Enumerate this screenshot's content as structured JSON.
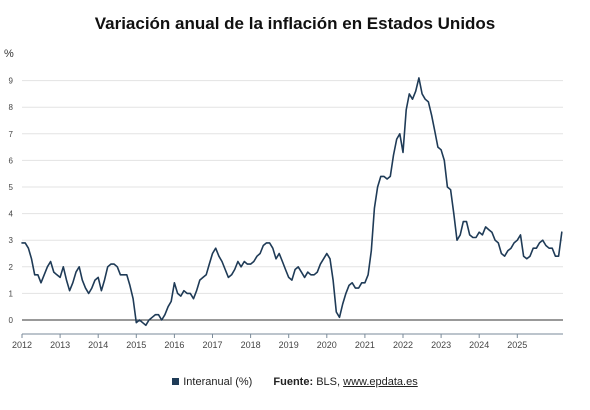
{
  "chart_data": {
    "type": "line",
    "title": "Variación anual de la inflación en Estados Unidos",
    "ylabel": "%",
    "xlabel": "",
    "ylim": [
      -0.3,
      9.5
    ],
    "yticks": [
      0,
      1,
      2,
      3,
      4,
      5,
      6,
      7,
      8,
      9
    ],
    "x_tick_labels": [
      "2012",
      "2013",
      "2014",
      "2015",
      "2016",
      "2017",
      "2018",
      "2019",
      "2020",
      "2021",
      "2022",
      "2023",
      "2024",
      "2025"
    ],
    "x_start": "2012-01",
    "grid": true,
    "legend_position": "bottom",
    "series": [
      {
        "name": "Interanual (%)",
        "color": "#1f3b57",
        "values": [
          2.9,
          2.9,
          2.7,
          2.3,
          1.7,
          1.7,
          1.4,
          1.7,
          2.0,
          2.2,
          1.8,
          1.7,
          1.6,
          2.0,
          1.5,
          1.1,
          1.4,
          1.8,
          2.0,
          1.5,
          1.2,
          1.0,
          1.2,
          1.5,
          1.6,
          1.1,
          1.5,
          2.0,
          2.1,
          2.1,
          2.0,
          1.7,
          1.7,
          1.7,
          1.3,
          0.8,
          -0.1,
          0.0,
          -0.1,
          -0.2,
          0.0,
          0.1,
          0.2,
          0.2,
          0.0,
          0.2,
          0.5,
          0.7,
          1.4,
          1.0,
          0.9,
          1.1,
          1.0,
          1.0,
          0.8,
          1.1,
          1.5,
          1.6,
          1.7,
          2.1,
          2.5,
          2.7,
          2.4,
          2.2,
          1.9,
          1.6,
          1.7,
          1.9,
          2.2,
          2.0,
          2.2,
          2.1,
          2.1,
          2.2,
          2.4,
          2.5,
          2.8,
          2.9,
          2.9,
          2.7,
          2.3,
          2.5,
          2.2,
          1.9,
          1.6,
          1.5,
          1.9,
          2.0,
          1.8,
          1.6,
          1.8,
          1.7,
          1.7,
          1.8,
          2.1,
          2.3,
          2.5,
          2.3,
          1.5,
          0.3,
          0.1,
          0.6,
          1.0,
          1.3,
          1.4,
          1.2,
          1.2,
          1.4,
          1.4,
          1.7,
          2.6,
          4.2,
          5.0,
          5.4,
          5.4,
          5.3,
          5.4,
          6.2,
          6.8,
          7.0,
          6.3,
          7.9,
          8.5,
          8.3,
          8.6,
          9.1,
          8.5,
          8.3,
          8.2,
          7.7,
          7.1,
          6.5,
          6.4,
          6.0,
          5.0,
          4.9,
          4.0,
          3.0,
          3.2,
          3.7,
          3.7,
          3.2,
          3.1,
          3.1,
          3.3,
          3.2,
          3.5,
          3.4,
          3.3,
          3.0,
          2.9,
          2.5,
          2.4,
          2.6,
          2.7,
          2.9,
          3.0,
          3.2,
          2.4,
          2.3,
          2.4,
          2.7,
          2.7,
          2.9,
          3.0,
          2.8,
          2.7,
          2.7,
          2.4,
          2.4,
          3.3
        ]
      }
    ]
  },
  "footer": {
    "legend_label": "Interanual (%)",
    "source_label": "Fuente:",
    "source_text": "BLS,",
    "source_link": "www.epdata.es"
  }
}
